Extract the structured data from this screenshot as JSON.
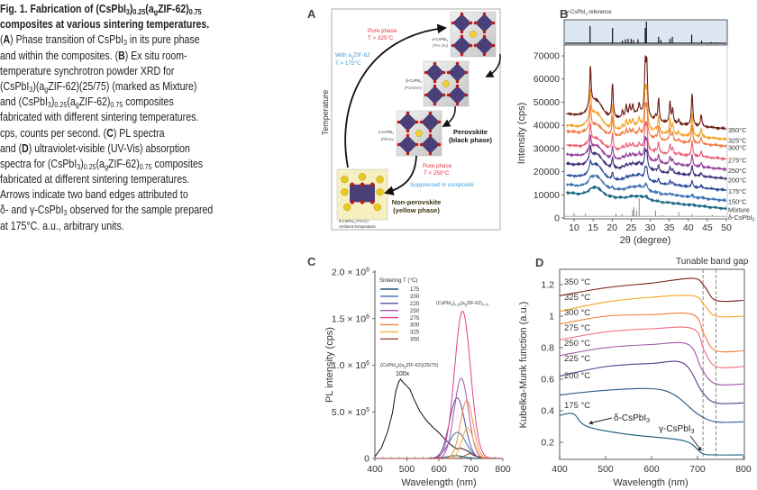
{
  "caption": {
    "lines": [
      {
        "bold": true,
        "segs": [
          {
            "t": "Fig. 1. Fabrication of (CsPbI"
          },
          {
            "t": "3",
            "s": "sub"
          },
          {
            "t": ")"
          },
          {
            "t": "0.25",
            "s": "sub"
          },
          {
            "t": "(a"
          },
          {
            "t": "g",
            "s": "sub"
          },
          {
            "t": "ZIF-62)"
          },
          {
            "t": "0.75",
            "s": "sub"
          }
        ]
      },
      {
        "bold": true,
        "segs": [
          {
            "t": "composites at various sintering temperatures."
          }
        ]
      },
      {
        "segs": [
          {
            "t": "("
          },
          {
            "t": "A",
            "s": "b"
          },
          {
            "t": ") Phase transition of CsPbI"
          },
          {
            "t": "3",
            "s": "sub"
          },
          {
            "t": " in its pure phase"
          }
        ]
      },
      {
        "segs": [
          {
            "t": "and within the composites. ("
          },
          {
            "t": "B",
            "s": "b"
          },
          {
            "t": ") Ex situ room-"
          }
        ]
      },
      {
        "segs": [
          {
            "t": "temperature synchrotron powder XRD for"
          }
        ]
      },
      {
        "segs": [
          {
            "t": "(CsPbI"
          },
          {
            "t": "3",
            "s": "sub"
          },
          {
            "t": ")(a"
          },
          {
            "t": "g",
            "s": "sub"
          },
          {
            "t": "ZIF-62)(25/75) (marked as Mixture)"
          }
        ]
      },
      {
        "segs": [
          {
            "t": "and (CsPbI"
          },
          {
            "t": "3",
            "s": "sub"
          },
          {
            "t": ")"
          },
          {
            "t": "0.25",
            "s": "sub"
          },
          {
            "t": "(a"
          },
          {
            "t": "g",
            "s": "sub"
          },
          {
            "t": "ZIF-62)"
          },
          {
            "t": "0.75",
            "s": "sub"
          },
          {
            "t": " composites"
          }
        ]
      },
      {
        "segs": [
          {
            "t": "fabricated with different sintering temperatures."
          }
        ]
      },
      {
        "segs": [
          {
            "t": "cps, counts per second. ("
          },
          {
            "t": "C",
            "s": "b"
          },
          {
            "t": ") PL spectra"
          }
        ]
      },
      {
        "segs": [
          {
            "t": "and ("
          },
          {
            "t": "D",
            "s": "b"
          },
          {
            "t": ") ultraviolet-visible (UV-Vis) absorption"
          }
        ]
      },
      {
        "segs": [
          {
            "t": "spectra for (CsPbI"
          },
          {
            "t": "3",
            "s": "sub"
          },
          {
            "t": ")"
          },
          {
            "t": "0.25",
            "s": "sub"
          },
          {
            "t": "(a"
          },
          {
            "t": "g",
            "s": "sub"
          },
          {
            "t": "ZIF-62)"
          },
          {
            "t": "0.75",
            "s": "sub"
          },
          {
            "t": " composites"
          }
        ]
      },
      {
        "segs": [
          {
            "t": "fabricated at different sintering temperatures."
          }
        ]
      },
      {
        "segs": [
          {
            "t": "Arrows indicate two band edges attributed to"
          }
        ]
      },
      {
        "segs": [
          {
            "t": "δ- and γ-CsPbI"
          },
          {
            "t": "3",
            "s": "sub"
          },
          {
            "t": " observed for the sample prepared"
          }
        ]
      },
      {
        "segs": [
          {
            "t": "at 175°C. a.u., arbitrary units."
          }
        ]
      }
    ]
  },
  "panel_a": {
    "label": "A",
    "axis_label": "Temperature",
    "pure_high": "Pure phase",
    "pure_high_t": "T > 325°C",
    "with_zif_a": "With a",
    "with_zif_g": "g",
    "with_zif_rest": "ZIF-62",
    "with_zif_t": "T > 175°C",
    "alpha_name": "α-CsPbI",
    "alpha_sub": "3",
    "alpha_group": "(Pm-3m)",
    "beta_name": "β-CsPbI",
    "beta_sub": "3",
    "beta_group": "(P4/mbm)",
    "gamma_name": "γ-CsPbI",
    "gamma_sub": "3",
    "gamma_group": "(Pbnm)",
    "delta_name": "δ-CsPbI",
    "delta_sub": "3",
    "delta_group": "(Pbmn)",
    "ambient": "Ambient temperature",
    "perovskite": "Perovskite",
    "black_phase": "(black phase)",
    "pure_low": "Pure phase",
    "pure_low_t": "T < 250°C",
    "suppressed": "Suppressed in composite",
    "non_perovskite": "Non-perovskite",
    "yellow_phase": "(yellow phase)",
    "colors": {
      "red": "#e8303a",
      "blue": "#3d9ad8",
      "octahedra": "#4a3f78",
      "yellow_box": "#f6efc0"
    }
  },
  "chart_data": [
    {
      "panel": "B",
      "type": "line",
      "label": "B",
      "reference_title": "γ-CsPbI",
      "reference_title_sub": "3",
      "reference_title_rest": " reference",
      "xlabel": "2θ (degree)",
      "ylabel": "Intensity (cps)",
      "xlim": [
        8,
        50
      ],
      "ylim": [
        0,
        70000
      ],
      "xticks": [
        10,
        15,
        20,
        25,
        30,
        35,
        40,
        45,
        50
      ],
      "yticks": [
        0,
        10000,
        20000,
        30000,
        40000,
        50000,
        60000,
        70000
      ],
      "reference_peaks": [
        [
          14.2,
          0.8
        ],
        [
          20.1,
          0.7
        ],
        [
          22.7,
          0.12
        ],
        [
          23.5,
          0.18
        ],
        [
          24.2,
          0.2
        ],
        [
          25.0,
          0.2
        ],
        [
          25.6,
          0.15
        ],
        [
          26.8,
          0.18
        ],
        [
          28.7,
          0.7
        ],
        [
          29.0,
          1.0
        ],
        [
          32.2,
          0.3
        ],
        [
          32.8,
          0.15
        ],
        [
          35.2,
          0.2
        ],
        [
          35.8,
          0.3
        ],
        [
          40.9,
          0.4
        ],
        [
          43.5,
          0.12
        ],
        [
          46.0,
          0.05
        ],
        [
          47.5,
          0.04
        ]
      ],
      "common_peaks": [
        [
          14.3,
          17000
        ],
        [
          20.1,
          15000
        ],
        [
          22.7,
          3000
        ],
        [
          23.7,
          5000
        ],
        [
          24.6,
          4000
        ],
        [
          25.4,
          4000
        ],
        [
          27.1,
          4000
        ],
        [
          28.7,
          21000
        ],
        [
          29.1,
          21000
        ],
        [
          31.4,
          2000
        ],
        [
          32.2,
          10000
        ],
        [
          35.2,
          9000
        ],
        [
          35.9,
          6000
        ],
        [
          37.5,
          2000
        ],
        [
          41.0,
          14000
        ],
        [
          43.4,
          5000
        ]
      ],
      "series": [
        {
          "name": "350°C",
          "start": 45000,
          "end": 38500,
          "hump": 7000,
          "peak_scale": 1.0,
          "color": "#6b1a10"
        },
        {
          "name": "325°C",
          "start": 40000,
          "end": 34000,
          "hump": 6500,
          "peak_scale": 0.72,
          "color": "#f5a020"
        },
        {
          "name": "300°C",
          "start": 37500,
          "end": 31000,
          "hump": 4000,
          "peak_scale": 0.55,
          "color": "#ee7c45"
        },
        {
          "name": "275°C",
          "start": 31500,
          "end": 25500,
          "hump": 4000,
          "peak_scale": 0.45,
          "color": "#ee5f72"
        },
        {
          "name": "250°C",
          "start": 27500,
          "end": 21000,
          "hump": 5000,
          "peak_scale": 0.35,
          "color": "#983f9c"
        },
        {
          "name": "200°C",
          "start": 23500,
          "end": 17000,
          "hump": 5500,
          "peak_scale": 0.3,
          "color": "#3e2e78"
        },
        {
          "name": "175°C",
          "start": 18500,
          "end": 12000,
          "hump": 6000,
          "peak_scale": 0.2,
          "color": "#2b4a98"
        },
        {
          "name": "150°C",
          "start": 14500,
          "end": 7500,
          "hump": 5000,
          "peak_scale": 0.08,
          "color": "#3a72b2"
        },
        {
          "name": "Mixture",
          "start": 11000,
          "end": 4000,
          "hump": 3500,
          "peak_scale": 0.03,
          "color": "#16667e"
        }
      ],
      "delta_label": "δ-CsPbI",
      "delta_label_sub": "3",
      "delta_peaks": [
        [
          10.0,
          1500
        ],
        [
          13.0,
          1200
        ],
        [
          21.0,
          1200
        ],
        [
          22.6,
          1000
        ],
        [
          25.4,
          2800
        ],
        [
          25.7,
          4000
        ],
        [
          26.4,
          2500
        ],
        [
          27.1,
          7800
        ],
        [
          31.4,
          2500
        ],
        [
          33.2,
          600
        ],
        [
          37.5,
          1800
        ],
        [
          41.0,
          1000
        ],
        [
          46.3,
          600
        ]
      ]
    },
    {
      "panel": "C",
      "type": "line",
      "label": "C",
      "xlabel": "Wavelength (nm)",
      "ylabel": "PL intensity (cps)",
      "xlim": [
        400,
        800
      ],
      "ylim": [
        0,
        2000000
      ],
      "xticks": [
        400,
        500,
        600,
        700,
        800
      ],
      "yticks": [
        {
          "v": 0,
          "t": "0"
        },
        {
          "v": 500000,
          "t": "5.0 × 10",
          "e": "5"
        },
        {
          "v": 1000000,
          "t": "1.0 × 10",
          "e": "6"
        },
        {
          "v": 1500000,
          "t": "1.5 × 10",
          "e": "6"
        },
        {
          "v": 2000000,
          "t": "2.0 × 10",
          "e": "6"
        }
      ],
      "legend_title": "Sintering T (°C)",
      "legend_position": "top-left",
      "series": [
        {
          "name": "175",
          "peak_nm": 652,
          "peak": 30000,
          "sigma": 26,
          "color": "#1a5470"
        },
        {
          "name": "200",
          "peak_nm": 658,
          "peak": 280000,
          "sigma": 27,
          "color": "#3a6cb0"
        },
        {
          "name": "225",
          "peak_nm": 657,
          "peak": 650000,
          "sigma": 24,
          "color": "#5a4ea0"
        },
        {
          "name": "250",
          "peak_nm": 670,
          "peak": 860000,
          "sigma": 22,
          "color": "#a458b0"
        },
        {
          "name": "275",
          "peak_nm": 674,
          "peak": 1580000,
          "sigma": 25,
          "color": "#e0408a"
        },
        {
          "name": "300",
          "peak_nm": 687,
          "peak": 620000,
          "sigma": 20,
          "color": "#f58a4a"
        },
        {
          "name": "325",
          "peak_nm": 690,
          "peak": 330000,
          "sigma": 18,
          "color": "#f8b040"
        },
        {
          "name": "350",
          "peak_nm": 697,
          "peak": 50000,
          "sigma": 16,
          "color": "#9a4a3a"
        }
      ],
      "mixture_series": {
        "name": "(CsPbI3)(agZIF-62)(25/75) 100x",
        "color": "#111111",
        "points": [
          [
            400,
            20000
          ],
          [
            420,
            120000
          ],
          [
            440,
            300000
          ],
          [
            455,
            500000
          ],
          [
            465,
            720000
          ],
          [
            475,
            820000
          ],
          [
            480,
            840000
          ],
          [
            490,
            800000
          ],
          [
            500,
            770000
          ],
          [
            510,
            740000
          ],
          [
            520,
            660000
          ],
          [
            540,
            520000
          ],
          [
            560,
            420000
          ],
          [
            580,
            340000
          ],
          [
            600,
            270000
          ],
          [
            620,
            190000
          ],
          [
            640,
            130000
          ],
          [
            655,
            100000
          ],
          [
            670,
            110000
          ],
          [
            690,
            80000
          ],
          [
            710,
            30000
          ],
          [
            740,
            5000
          ],
          [
            800,
            0
          ]
        ]
      },
      "annot_mix": {
        "a": "(CsPbI",
        "b": "3",
        "c": ")(a",
        "d": "g",
        "e": "ZIF-62)(25/75)"
      },
      "annot_mix_factor": "100x",
      "annot_comp": {
        "a": "(CsPbI",
        "b": "3",
        "c": ")",
        "d": "0.25",
        "e": "(a",
        "f": "g",
        "g": "ZIF-62)",
        "h": "0.75"
      }
    },
    {
      "panel": "D",
      "type": "line",
      "label": "D",
      "xlabel": "Wavelength (nm)",
      "ylabel": "Kubelka-Munk function (a.u.)",
      "xlim": [
        400,
        800
      ],
      "ylim": [
        0.09,
        1.3
      ],
      "xticks": [
        400,
        500,
        600,
        700,
        800
      ],
      "yticks": [
        0.2,
        0.4,
        0.6,
        0.8,
        1.0,
        1.2
      ],
      "title_annotation": "Tunable band gap",
      "band_edges_nm": [
        712,
        740
      ],
      "series": [
        {
          "name": "350 °C",
          "color": "#7a1d12",
          "points": [
            [
              400,
              1.13
            ],
            [
              500,
              1.18
            ],
            [
              600,
              1.21
            ],
            [
              690,
              1.24
            ],
            [
              715,
              1.19
            ],
            [
              740,
              1.1
            ],
            [
              800,
              1.1
            ]
          ]
        },
        {
          "name": "325 °C",
          "color": "#f5a31a",
          "points": [
            [
              400,
              1.03
            ],
            [
              500,
              1.09
            ],
            [
              600,
              1.12
            ],
            [
              690,
              1.13
            ],
            [
              715,
              1.07
            ],
            [
              740,
              1.0
            ],
            [
              800,
              1.0
            ]
          ]
        },
        {
          "name": "300 °C",
          "color": "#f07c35",
          "points": [
            [
              400,
              0.95
            ],
            [
              500,
              1.0
            ],
            [
              600,
              1.01
            ],
            [
              690,
              1.01
            ],
            [
              715,
              0.88
            ],
            [
              740,
              0.78
            ],
            [
              800,
              0.78
            ]
          ]
        },
        {
          "name": "275 °C",
          "color": "#f06a7a",
          "points": [
            [
              400,
              0.85
            ],
            [
              500,
              0.9
            ],
            [
              600,
              0.92
            ],
            [
              690,
              0.92
            ],
            [
              715,
              0.78
            ],
            [
              740,
              0.68
            ],
            [
              800,
              0.68
            ]
          ]
        },
        {
          "name": "250 °C",
          "color": "#a050a8",
          "points": [
            [
              400,
              0.75
            ],
            [
              500,
              0.8
            ],
            [
              600,
              0.82
            ],
            [
              680,
              0.82
            ],
            [
              710,
              0.66
            ],
            [
              740,
              0.57
            ],
            [
              800,
              0.57
            ]
          ]
        },
        {
          "name": "225 °C",
          "color": "#5a3a8a",
          "points": [
            [
              400,
              0.62
            ],
            [
              500,
              0.68
            ],
            [
              600,
              0.7
            ],
            [
              670,
              0.7
            ],
            [
              710,
              0.52
            ],
            [
              740,
              0.45
            ],
            [
              800,
              0.45
            ]
          ]
        },
        {
          "name": "200 °C",
          "color": "#2a5a8a",
          "points": [
            [
              400,
              0.5
            ],
            [
              500,
              0.53
            ],
            [
              600,
              0.54
            ],
            [
              650,
              0.5
            ],
            [
              700,
              0.38
            ],
            [
              740,
              0.33
            ],
            [
              800,
              0.33
            ]
          ]
        },
        {
          "name": "175 °C",
          "color": "#1a5a7a",
          "points": [
            [
              400,
              0.37
            ],
            [
              430,
              0.38
            ],
            [
              460,
              0.3
            ],
            [
              550,
              0.25
            ],
            [
              670,
              0.21
            ],
            [
              710,
              0.13
            ],
            [
              740,
              0.12
            ],
            [
              800,
              0.12
            ]
          ]
        }
      ],
      "arrow_delta": {
        "a": "δ-CsPbI",
        "b": "3"
      },
      "arrow_gamma": {
        "a": "γ-CsPbI",
        "b": "3"
      }
    }
  ]
}
